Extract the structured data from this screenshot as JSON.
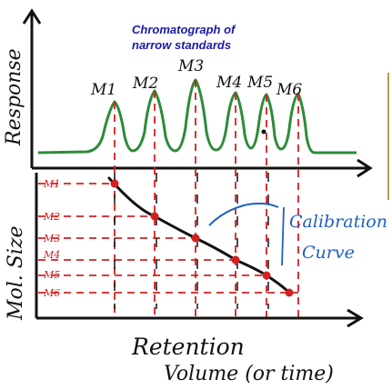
{
  "title": {
    "line1": "Chromatograph of",
    "line2": "narrow standards"
  },
  "axes": {
    "response_label": "Response",
    "size_label": "Mol. Size",
    "x_label_line1": "Retention",
    "x_label_line2": "Volume (or time)"
  },
  "peaks": [
    "M1",
    "M2",
    "M3",
    "M4",
    "M5",
    "M6"
  ],
  "size_ticks": [
    "M1",
    "M2",
    "M3",
    "M4",
    "M5",
    "M6"
  ],
  "calibration": {
    "label_line1": "Calibration",
    "label_line2": "Curve"
  },
  "colors": {
    "ink": "#111111",
    "chromatogram": "#2e8b3a",
    "markers": "#d42020",
    "title": "#1a1aa8",
    "annotation": "#2060c0",
    "right_rule": "#b89a50"
  }
}
